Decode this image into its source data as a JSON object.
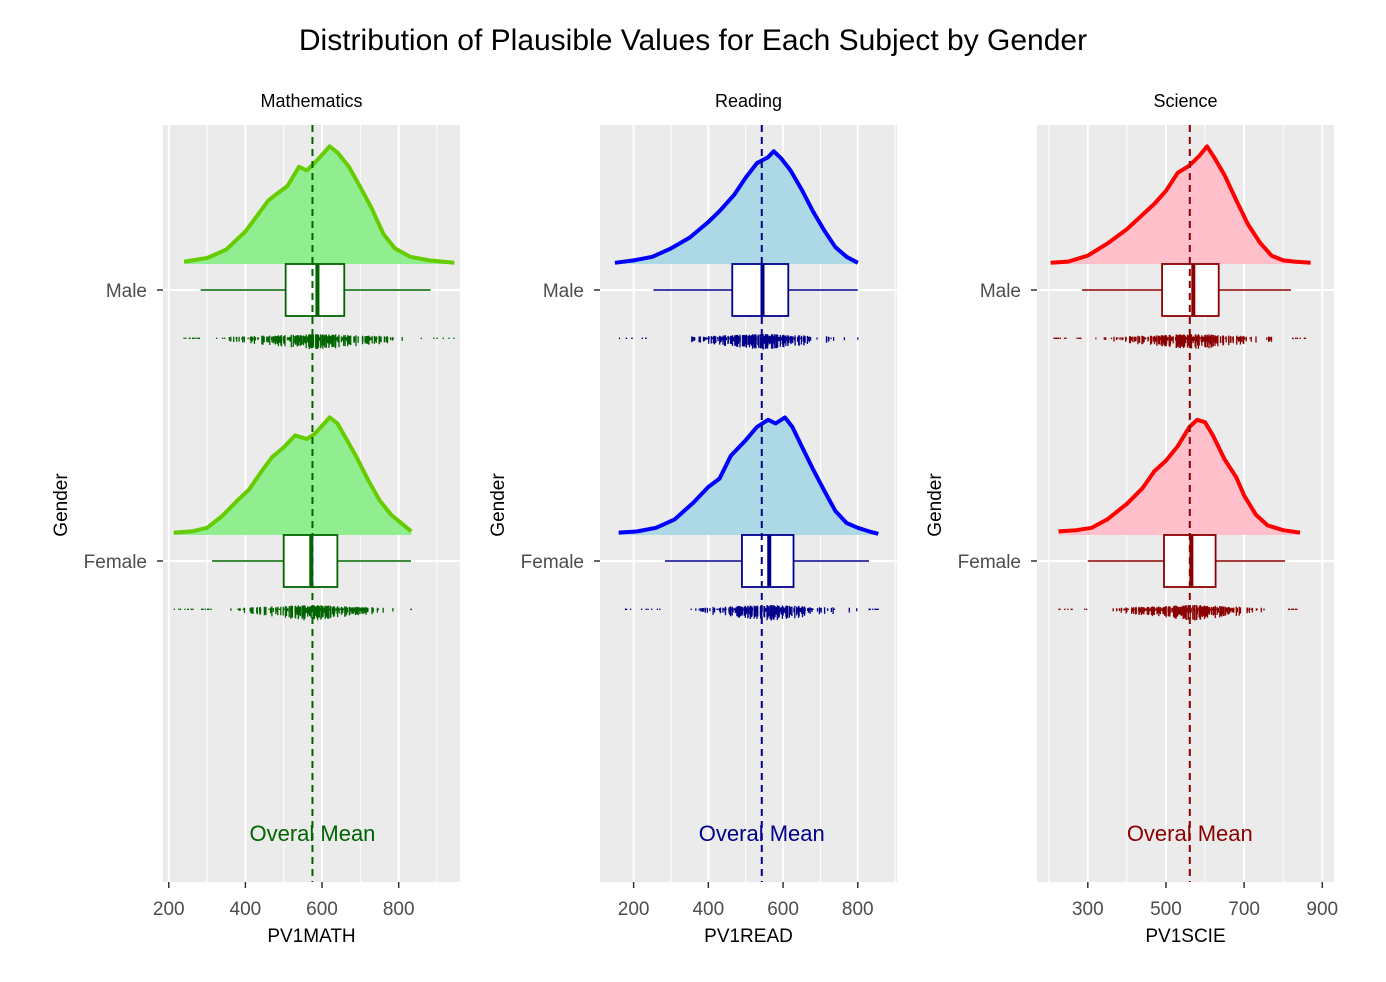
{
  "title": "Distribution of Plausible Values for Each Subject by Gender",
  "chart_data": [
    {
      "type": "raincloud",
      "strip_label": "Mathematics",
      "xlabel": "PV1MATH",
      "ylabel": "Gender",
      "x_ticks": [
        200,
        400,
        600,
        800
      ],
      "xlim": [
        185,
        960
      ],
      "categories": [
        "Male",
        "Female"
      ],
      "overall_mean": 575,
      "mean_label": "Overal Mean",
      "colors": {
        "fill": "#90ee90",
        "line": "#66cc00",
        "dark": "#006400"
      },
      "series": [
        {
          "group": "Male",
          "box": {
            "whisker_low": 283,
            "q1": 505,
            "median": 588,
            "q3": 658,
            "whisker_high": 883
          },
          "range": [
            240,
            945
          ],
          "density": [
            [
              240,
              0.02
            ],
            [
              300,
              0.05
            ],
            [
              350,
              0.12
            ],
            [
              400,
              0.27
            ],
            [
              430,
              0.4
            ],
            [
              460,
              0.53
            ],
            [
              480,
              0.58
            ],
            [
              510,
              0.65
            ],
            [
              540,
              0.81
            ],
            [
              560,
              0.78
            ],
            [
              580,
              0.84
            ],
            [
              600,
              0.91
            ],
            [
              620,
              0.98
            ],
            [
              640,
              0.93
            ],
            [
              670,
              0.81
            ],
            [
              700,
              0.64
            ],
            [
              730,
              0.46
            ],
            [
              760,
              0.25
            ],
            [
              790,
              0.13
            ],
            [
              830,
              0.06
            ],
            [
              880,
              0.03
            ],
            [
              945,
              0.01
            ]
          ]
        },
        {
          "group": "Female",
          "box": {
            "whisker_low": 313,
            "q1": 500,
            "median": 572,
            "q3": 640,
            "whisker_high": 832
          },
          "range": [
            213,
            833
          ],
          "density": [
            [
              213,
              0.02
            ],
            [
              260,
              0.03
            ],
            [
              300,
              0.06
            ],
            [
              340,
              0.16
            ],
            [
              380,
              0.29
            ],
            [
              410,
              0.38
            ],
            [
              440,
              0.52
            ],
            [
              470,
              0.65
            ],
            [
              500,
              0.73
            ],
            [
              530,
              0.83
            ],
            [
              560,
              0.8
            ],
            [
              580,
              0.84
            ],
            [
              600,
              0.91
            ],
            [
              620,
              0.98
            ],
            [
              640,
              0.93
            ],
            [
              660,
              0.82
            ],
            [
              690,
              0.65
            ],
            [
              720,
              0.46
            ],
            [
              750,
              0.29
            ],
            [
              780,
              0.17
            ],
            [
              810,
              0.09
            ],
            [
              833,
              0.03
            ]
          ]
        }
      ]
    },
    {
      "type": "raincloud",
      "strip_label": "Reading",
      "xlabel": "PV1READ",
      "ylabel": "Gender",
      "x_ticks": [
        200,
        400,
        600,
        800
      ],
      "xlim": [
        110,
        905
      ],
      "categories": [
        "Male",
        "Female"
      ],
      "overall_mean": 543,
      "mean_label": "Overal Mean",
      "colors": {
        "fill": "#add8e6",
        "line": "#0000ff",
        "dark": "#00008b"
      },
      "series": [
        {
          "group": "Male",
          "box": {
            "whisker_low": 253,
            "q1": 464,
            "median": 545,
            "q3": 614,
            "whisker_high": 800
          },
          "range": [
            150,
            800
          ],
          "density": [
            [
              150,
              0.01
            ],
            [
              200,
              0.03
            ],
            [
              250,
              0.06
            ],
            [
              300,
              0.13
            ],
            [
              350,
              0.22
            ],
            [
              400,
              0.35
            ],
            [
              430,
              0.44
            ],
            [
              470,
              0.58
            ],
            [
              500,
              0.72
            ],
            [
              530,
              0.84
            ],
            [
              560,
              0.89
            ],
            [
              575,
              0.94
            ],
            [
              595,
              0.88
            ],
            [
              620,
              0.78
            ],
            [
              650,
              0.62
            ],
            [
              680,
              0.44
            ],
            [
              710,
              0.28
            ],
            [
              740,
              0.14
            ],
            [
              770,
              0.06
            ],
            [
              800,
              0.01
            ]
          ]
        },
        {
          "group": "Female",
          "box": {
            "whisker_low": 284,
            "q1": 490,
            "median": 563,
            "q3": 628,
            "whisker_high": 830
          },
          "range": [
            160,
            855
          ],
          "density": [
            [
              160,
              0.02
            ],
            [
              210,
              0.03
            ],
            [
              260,
              0.06
            ],
            [
              310,
              0.13
            ],
            [
              360,
              0.27
            ],
            [
              400,
              0.4
            ],
            [
              430,
              0.47
            ],
            [
              460,
              0.66
            ],
            [
              500,
              0.79
            ],
            [
              530,
              0.9
            ],
            [
              560,
              0.96
            ],
            [
              580,
              0.93
            ],
            [
              605,
              0.98
            ],
            [
              625,
              0.9
            ],
            [
              650,
              0.74
            ],
            [
              680,
              0.55
            ],
            [
              710,
              0.37
            ],
            [
              740,
              0.2
            ],
            [
              770,
              0.1
            ],
            [
              800,
              0.06
            ],
            [
              830,
              0.03
            ],
            [
              855,
              0.01
            ]
          ]
        }
      ]
    },
    {
      "type": "raincloud",
      "strip_label": "Science",
      "xlabel": "PV1SCIE",
      "ylabel": "Gender",
      "x_ticks": [
        300,
        500,
        700,
        900
      ],
      "xlim": [
        170,
        930
      ],
      "categories": [
        "Male",
        "Female"
      ],
      "overall_mean": 561,
      "mean_label": "Overal Mean",
      "colors": {
        "fill": "#ffc0cb",
        "line": "#ff0000",
        "dark": "#8b0000"
      },
      "series": [
        {
          "group": "Male",
          "box": {
            "whisker_low": 285,
            "q1": 490,
            "median": 570,
            "q3": 635,
            "whisker_high": 820
          },
          "range": [
            205,
            870
          ],
          "density": [
            [
              205,
              0.01
            ],
            [
              250,
              0.02
            ],
            [
              300,
              0.07
            ],
            [
              350,
              0.17
            ],
            [
              400,
              0.29
            ],
            [
              440,
              0.41
            ],
            [
              470,
              0.5
            ],
            [
              500,
              0.61
            ],
            [
              530,
              0.76
            ],
            [
              560,
              0.82
            ],
            [
              585,
              0.9
            ],
            [
              605,
              0.98
            ],
            [
              625,
              0.88
            ],
            [
              650,
              0.74
            ],
            [
              680,
              0.53
            ],
            [
              710,
              0.33
            ],
            [
              740,
              0.18
            ],
            [
              770,
              0.07
            ],
            [
              800,
              0.03
            ],
            [
              830,
              0.02
            ],
            [
              870,
              0.01
            ]
          ]
        },
        {
          "group": "Female",
          "box": {
            "whisker_low": 300,
            "q1": 495,
            "median": 565,
            "q3": 627,
            "whisker_high": 805
          },
          "range": [
            225,
            843
          ],
          "density": [
            [
              225,
              0.03
            ],
            [
              270,
              0.04
            ],
            [
              310,
              0.06
            ],
            [
              350,
              0.13
            ],
            [
              400,
              0.26
            ],
            [
              440,
              0.39
            ],
            [
              470,
              0.53
            ],
            [
              500,
              0.62
            ],
            [
              530,
              0.74
            ],
            [
              560,
              0.9
            ],
            [
              580,
              0.96
            ],
            [
              600,
              0.94
            ],
            [
              620,
              0.83
            ],
            [
              650,
              0.63
            ],
            [
              680,
              0.48
            ],
            [
              700,
              0.33
            ],
            [
              730,
              0.17
            ],
            [
              760,
              0.08
            ],
            [
              800,
              0.04
            ],
            [
              843,
              0.02
            ]
          ]
        }
      ]
    }
  ]
}
